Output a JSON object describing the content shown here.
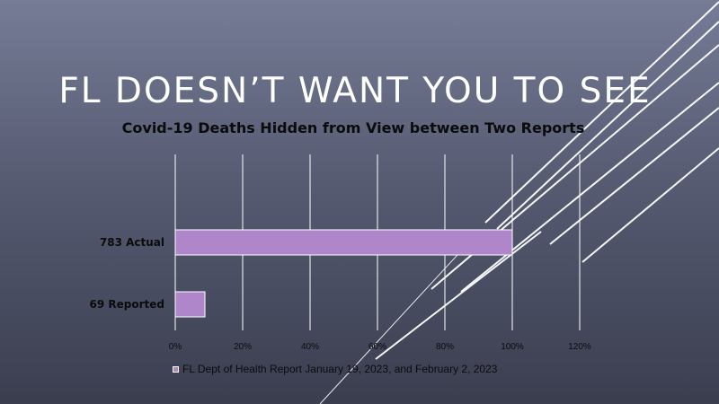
{
  "slide": {
    "title": "FL DOESN’T WANT YOU TO SEE"
  },
  "chart_data": {
    "type": "bar",
    "orientation": "horizontal",
    "title": "Covid-19 Deaths Hidden from View between Two Reports",
    "categories": [
      "783 Actual",
      "69 Reported"
    ],
    "series": [
      {
        "name": "FL Dept of Health Report January 19, 2023, and February 2, 2023",
        "values": [
          100,
          8.8
        ],
        "color": "#ae86c9"
      }
    ],
    "x_axis": {
      "ticks": [
        0,
        20,
        40,
        60,
        80,
        100,
        120
      ],
      "tick_labels": [
        "0%",
        "20%",
        "40%",
        "60%",
        "80%",
        "100%",
        "120%"
      ],
      "range": [
        0,
        120
      ]
    },
    "grid": true,
    "legend": "bottom"
  },
  "colors": {
    "bar": "#ae86c9",
    "gridline": "#ffffff",
    "text": "#0b0b0b",
    "title": "#ffffff"
  }
}
